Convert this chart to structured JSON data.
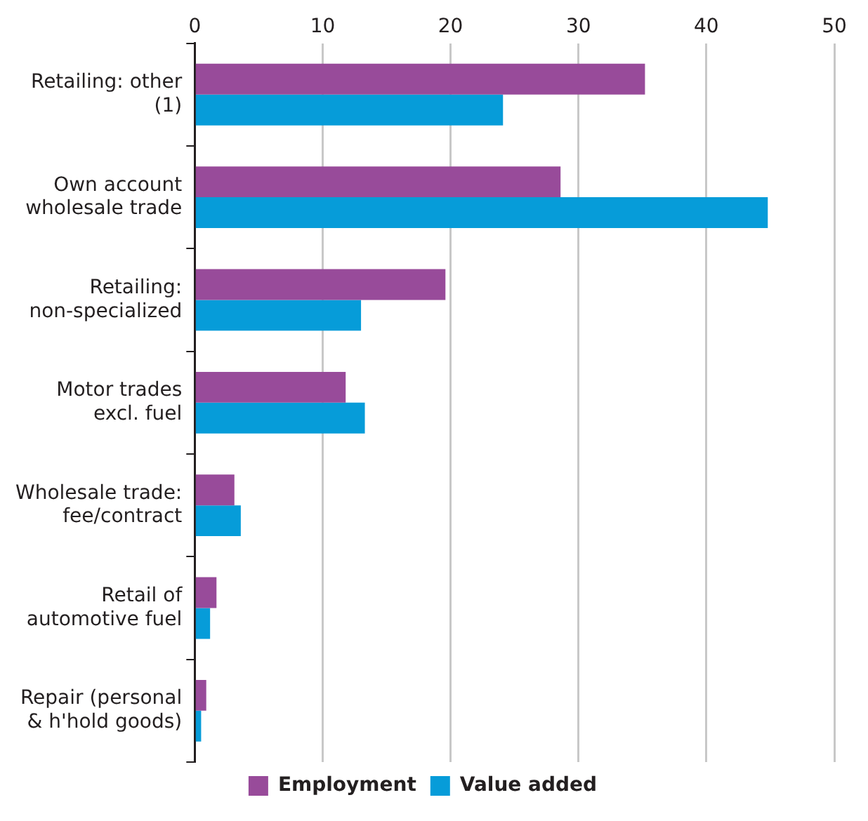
{
  "chart_data": {
    "type": "bar",
    "orientation": "horizontal",
    "categories": [
      "Retailing: other (1)",
      "Own account wholesale trade",
      "Retailing: non-specialized",
      "Motor trades excl. fuel",
      "Wholesale trade: fee/contract",
      "Retail of automotive fuel",
      "Repair (personal & h'hold goods)"
    ],
    "series": [
      {
        "name": "Employment",
        "color": "#984b9a",
        "values": [
          35.2,
          28.6,
          19.6,
          11.8,
          3.1,
          1.7,
          0.9
        ]
      },
      {
        "name": "Value added",
        "color": "#069cd9",
        "values": [
          24.1,
          44.8,
          13.0,
          13.3,
          3.6,
          1.2,
          0.5
        ]
      }
    ],
    "xlim": [
      0,
      50
    ],
    "xticks": [
      0,
      10,
      20,
      30,
      40,
      50
    ],
    "grid": "x",
    "legend": "bottom"
  }
}
